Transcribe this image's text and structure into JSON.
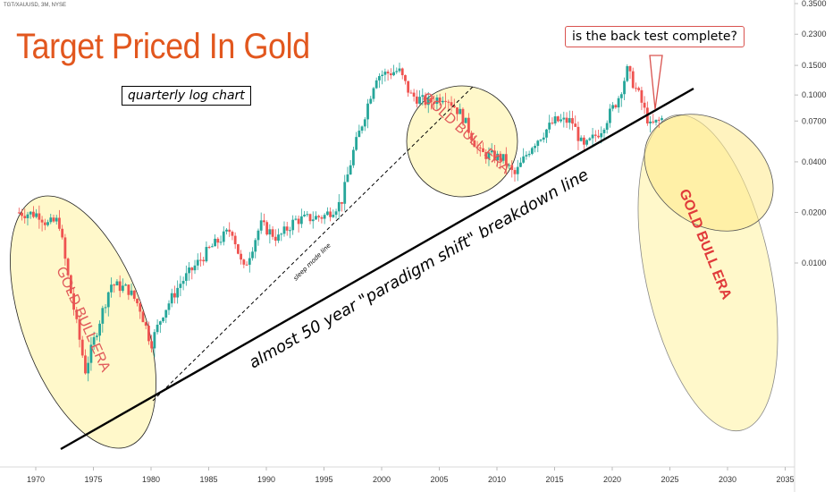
{
  "chart_data": {
    "type": "candlestick",
    "symbol": "TGT/XAUUSD, 3M, NYSE",
    "title": "Target Priced In Gold",
    "subtitle": "quarterly log chart",
    "callout": "is the back test complete?",
    "y_scale": "log",
    "x_ticks": [
      "1970",
      "1975",
      "1980",
      "1985",
      "1990",
      "1995",
      "2000",
      "2005",
      "2010",
      "2015",
      "2020",
      "2025",
      "2030",
      "2035"
    ],
    "y_ticks": [
      "0.3500",
      "0.2300",
      "0.1500",
      "0.1000",
      "0.0700",
      "0.0400",
      "0.0200",
      "0.0100"
    ],
    "annotations": {
      "breakdown_line": "almost 50 year \"paradigm shift\" breakdown line",
      "sleep_mode": "sleep mode line",
      "gold_bull_era": [
        "GOLD BULL ERA",
        "GOLD BULL ERA",
        "GOLD BULL ERA"
      ]
    },
    "colors": {
      "up": "#26a69a",
      "down": "#ef5350",
      "title": "#e2571e",
      "era_fill": "#fff6b8",
      "era_text": "#e05a5a"
    },
    "anchors": [
      {
        "year": 1968.3,
        "value": 0.02
      },
      {
        "year": 1970.3,
        "value": 0.0195
      },
      {
        "year": 1971.0,
        "value": 0.017
      },
      {
        "year": 1972.0,
        "value": 0.018
      },
      {
        "year": 1972.7,
        "value": 0.009
      },
      {
        "year": 1973.5,
        "value": 0.0045
      },
      {
        "year": 1974.3,
        "value": 0.0023
      },
      {
        "year": 1975.3,
        "value": 0.004
      },
      {
        "year": 1976.5,
        "value": 0.0075
      },
      {
        "year": 1978.0,
        "value": 0.007
      },
      {
        "year": 1979.0,
        "value": 0.0055
      },
      {
        "year": 1980.0,
        "value": 0.0033
      },
      {
        "year": 1981.0,
        "value": 0.005
      },
      {
        "year": 1982.5,
        "value": 0.0075
      },
      {
        "year": 1985.0,
        "value": 0.012
      },
      {
        "year": 1987.0,
        "value": 0.016
      },
      {
        "year": 1988.0,
        "value": 0.009
      },
      {
        "year": 1989.5,
        "value": 0.017
      },
      {
        "year": 1991.0,
        "value": 0.014
      },
      {
        "year": 1992.5,
        "value": 0.018
      },
      {
        "year": 1995.0,
        "value": 0.019
      },
      {
        "year": 1996.5,
        "value": 0.023
      },
      {
        "year": 1997.5,
        "value": 0.045
      },
      {
        "year": 1998.5,
        "value": 0.075
      },
      {
        "year": 1999.5,
        "value": 0.13
      },
      {
        "year": 2001.5,
        "value": 0.14
      },
      {
        "year": 2002.5,
        "value": 0.1
      },
      {
        "year": 2004.0,
        "value": 0.09
      },
      {
        "year": 2005.5,
        "value": 0.1
      },
      {
        "year": 2007.0,
        "value": 0.075
      },
      {
        "year": 2008.5,
        "value": 0.045
      },
      {
        "year": 2010.5,
        "value": 0.042
      },
      {
        "year": 2011.5,
        "value": 0.033
      },
      {
        "year": 2013.0,
        "value": 0.05
      },
      {
        "year": 2015.0,
        "value": 0.07
      },
      {
        "year": 2016.5,
        "value": 0.07
      },
      {
        "year": 2017.5,
        "value": 0.048
      },
      {
        "year": 2019.0,
        "value": 0.062
      },
      {
        "year": 2020.5,
        "value": 0.095
      },
      {
        "year": 2021.3,
        "value": 0.14
      },
      {
        "year": 2022.3,
        "value": 0.1
      },
      {
        "year": 2023.3,
        "value": 0.065
      },
      {
        "year": 2024.3,
        "value": 0.072
      }
    ]
  }
}
